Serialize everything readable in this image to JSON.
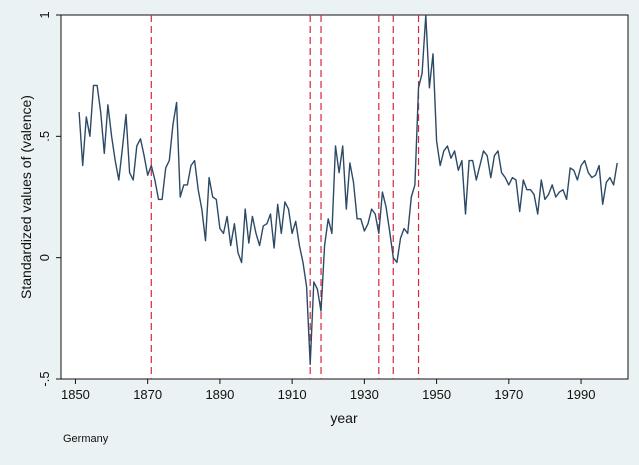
{
  "chart_data": {
    "type": "line",
    "title": "",
    "xlabel": "year",
    "ylabel": "Standardized values of (valence)",
    "note": "Germany",
    "xlim": [
      1846,
      2003
    ],
    "ylim": [
      -0.5,
      1.0
    ],
    "xticks": [
      1850,
      1870,
      1890,
      1910,
      1930,
      1950,
      1970,
      1990
    ],
    "yticks": [
      -0.5,
      0,
      0.5,
      1
    ],
    "ytick_labels": [
      "-.5",
      "0",
      ".5",
      "1"
    ],
    "grid": false,
    "legend": "none",
    "colors": {
      "line": "#2c4a66",
      "vlines": "#d7263d",
      "plot_bg": "#ffffff",
      "page_bg": "#eaf2f3"
    },
    "vertical_lines": [
      1871,
      1915,
      1918,
      1934,
      1938,
      1945
    ],
    "series": [
      {
        "x": [
          1851,
          1852,
          1853,
          1854,
          1855,
          1856,
          1857,
          1858,
          1859,
          1860,
          1861,
          1862,
          1863,
          1864,
          1865,
          1866,
          1867,
          1868,
          1869,
          1870,
          1871,
          1872,
          1873,
          1874,
          1875,
          1876,
          1877,
          1878,
          1879,
          1880,
          1881,
          1882,
          1883,
          1884,
          1885,
          1886,
          1887,
          1888,
          1889,
          1890,
          1891,
          1892,
          1893,
          1894,
          1895,
          1896,
          1897,
          1898,
          1899,
          1900,
          1901,
          1902,
          1903,
          1904,
          1905,
          1906,
          1907,
          1908,
          1909,
          1910,
          1911,
          1912,
          1913,
          1914,
          1915,
          1916,
          1917,
          1918,
          1919,
          1920,
          1921,
          1922,
          1923,
          1924,
          1925,
          1926,
          1927,
          1928,
          1929,
          1930,
          1931,
          1932,
          1933,
          1934,
          1935,
          1936,
          1937,
          1938,
          1939,
          1940,
          1941,
          1942,
          1943,
          1944,
          1945,
          1946,
          1947,
          1948,
          1949,
          1950,
          1951,
          1952,
          1953,
          1954,
          1955,
          1956,
          1957,
          1958,
          1959,
          1960,
          1961,
          1962,
          1963,
          1964,
          1965,
          1966,
          1967,
          1968,
          1969,
          1970,
          1971,
          1972,
          1973,
          1974,
          1975,
          1976,
          1977,
          1978,
          1979,
          1980,
          1981,
          1982,
          1983,
          1984,
          1985,
          1986,
          1987,
          1988,
          1989,
          1990,
          1991,
          1992,
          1993,
          1994,
          1995,
          1996,
          1997,
          1998,
          1999,
          2000
        ],
        "values": [
          0.6,
          0.38,
          0.58,
          0.5,
          0.71,
          0.71,
          0.6,
          0.43,
          0.63,
          0.5,
          0.4,
          0.32,
          0.45,
          0.59,
          0.35,
          0.32,
          0.46,
          0.49,
          0.42,
          0.34,
          0.38,
          0.32,
          0.24,
          0.24,
          0.37,
          0.4,
          0.55,
          0.64,
          0.25,
          0.3,
          0.3,
          0.38,
          0.4,
          0.28,
          0.2,
          0.07,
          0.33,
          0.25,
          0.24,
          0.12,
          0.1,
          0.17,
          0.05,
          0.14,
          0.02,
          -0.02,
          0.2,
          0.06,
          0.17,
          0.1,
          0.05,
          0.13,
          0.14,
          0.18,
          0.04,
          0.22,
          0.1,
          0.23,
          0.2,
          0.1,
          0.15,
          0.05,
          -0.02,
          -0.12,
          -0.44,
          -0.1,
          -0.13,
          -0.22,
          0.05,
          0.16,
          0.1,
          0.46,
          0.35,
          0.46,
          0.2,
          0.39,
          0.31,
          0.16,
          0.16,
          0.11,
          0.14,
          0.2,
          0.18,
          0.1,
          0.27,
          0.21,
          0.11,
          0.0,
          -0.02,
          0.08,
          0.12,
          0.1,
          0.25,
          0.3,
          0.7,
          0.76,
          1.0,
          0.7,
          0.84,
          0.48,
          0.38,
          0.44,
          0.46,
          0.41,
          0.44,
          0.36,
          0.4,
          0.18,
          0.4,
          0.4,
          0.32,
          0.38,
          0.44,
          0.42,
          0.33,
          0.42,
          0.44,
          0.35,
          0.33,
          0.3,
          0.33,
          0.32,
          0.19,
          0.32,
          0.28,
          0.28,
          0.26,
          0.18,
          0.32,
          0.24,
          0.26,
          0.3,
          0.25,
          0.27,
          0.28,
          0.24,
          0.37,
          0.36,
          0.32,
          0.38,
          0.4,
          0.35,
          0.33,
          0.34,
          0.38,
          0.22,
          0.31,
          0.33,
          0.3,
          0.39
        ]
      }
    ]
  }
}
